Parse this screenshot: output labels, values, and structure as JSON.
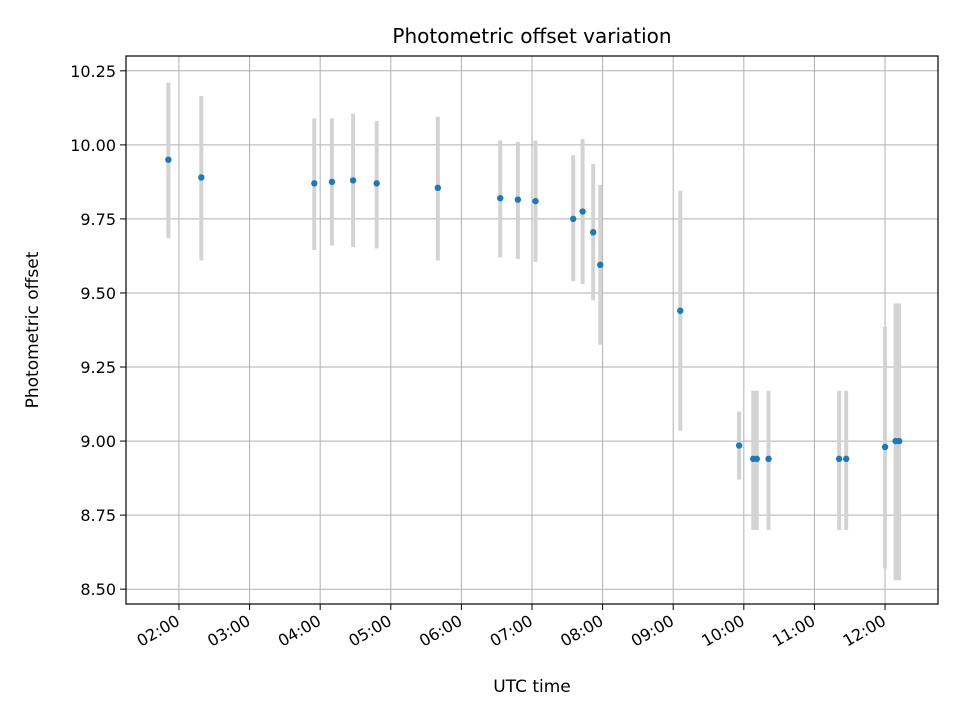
{
  "chart_data": {
    "type": "scatter",
    "title": "Photometric offset variation",
    "xlabel": "UTC time",
    "ylabel": "Photometric offset",
    "grid": true,
    "xlim_hours": [
      1.25,
      12.75
    ],
    "ylim": [
      8.45,
      10.3
    ],
    "x_ticks": [
      "02:00",
      "03:00",
      "04:00",
      "05:00",
      "06:00",
      "07:00",
      "08:00",
      "09:00",
      "10:00",
      "11:00",
      "12:00"
    ],
    "y_ticks": [
      "8.50",
      "8.75",
      "9.00",
      "9.25",
      "9.50",
      "9.75",
      "10.00",
      "10.25"
    ],
    "series": [
      {
        "marker_color": "#1f77b4",
        "error_color": "#d3d3d3",
        "x": [
          "01:51",
          "02:19",
          "03:55",
          "04:10",
          "04:28",
          "04:48",
          "05:40",
          "06:33",
          "06:48",
          "07:03",
          "07:35",
          "07:43",
          "07:52",
          "07:58",
          "09:06",
          "09:56",
          "10:08",
          "10:11",
          "10:21",
          "11:21",
          "11:27",
          "12:00",
          "12:09",
          "12:12"
        ],
        "y": [
          9.95,
          9.89,
          9.87,
          9.875,
          9.88,
          9.87,
          9.855,
          9.82,
          9.815,
          9.81,
          9.75,
          9.775,
          9.705,
          9.595,
          9.44,
          8.985,
          8.94,
          8.94,
          8.94,
          8.94,
          8.94,
          8.98,
          9.0,
          9.0
        ],
        "yerr_low": [
          9.685,
          9.61,
          9.645,
          9.66,
          9.655,
          9.65,
          9.61,
          9.62,
          9.615,
          9.605,
          9.54,
          9.53,
          9.475,
          9.325,
          9.035,
          8.87,
          8.7,
          8.7,
          8.7,
          8.7,
          8.7,
          8.57,
          8.53,
          8.53
        ],
        "yerr_high": [
          10.21,
          10.165,
          10.09,
          10.09,
          10.105,
          10.08,
          10.095,
          10.015,
          10.01,
          10.015,
          9.965,
          10.02,
          9.935,
          9.865,
          9.845,
          9.1,
          9.17,
          9.17,
          9.17,
          9.17,
          9.17,
          9.385,
          9.465,
          9.465
        ]
      }
    ]
  }
}
